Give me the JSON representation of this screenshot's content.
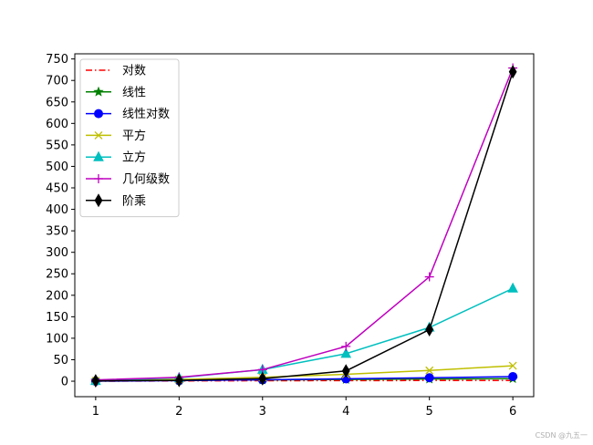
{
  "watermark": "CSDN @九五一",
  "chart_data": {
    "type": "line",
    "x": [
      1,
      2,
      3,
      4,
      5,
      6
    ],
    "xticks": [
      1,
      2,
      3,
      4,
      5,
      6
    ],
    "yticks": [
      0,
      50,
      100,
      150,
      200,
      250,
      300,
      350,
      400,
      450,
      500,
      550,
      600,
      650,
      700,
      750
    ],
    "xlim": [
      0.75,
      6.25
    ],
    "ylim": [
      -36,
      762
    ],
    "grid": false,
    "legend_position": "upper-left",
    "series": [
      {
        "name": "对数",
        "values": [
          0,
          0.69,
          1.1,
          1.39,
          1.61,
          1.79
        ],
        "color": "#ff0000",
        "linestyle": "dashdot",
        "marker": "none"
      },
      {
        "name": "线性",
        "values": [
          1,
          2,
          3,
          4,
          5,
          6
        ],
        "color": "#008000",
        "linestyle": "solid",
        "marker": "star"
      },
      {
        "name": "线性对数",
        "values": [
          0,
          1.39,
          3.3,
          5.55,
          8.05,
          10.75
        ],
        "color": "#0000ff",
        "linestyle": "solid",
        "marker": "circle"
      },
      {
        "name": "平方",
        "values": [
          1,
          4,
          9,
          16,
          25,
          36
        ],
        "color": "#bfbf00",
        "linestyle": "solid",
        "marker": "x"
      },
      {
        "name": "立方",
        "values": [
          1,
          8,
          27,
          64,
          125,
          216
        ],
        "color": "#00bfbf",
        "linestyle": "solid",
        "marker": "triangle"
      },
      {
        "name": "几何级数",
        "values": [
          3,
          9,
          27,
          81,
          243,
          729
        ],
        "color": "#bf00bf",
        "linestyle": "solid",
        "marker": "plus"
      },
      {
        "name": "阶乘",
        "values": [
          1,
          2,
          6,
          24,
          120,
          720
        ],
        "color": "#000000",
        "linestyle": "solid",
        "marker": "thin-diamond"
      }
    ]
  }
}
